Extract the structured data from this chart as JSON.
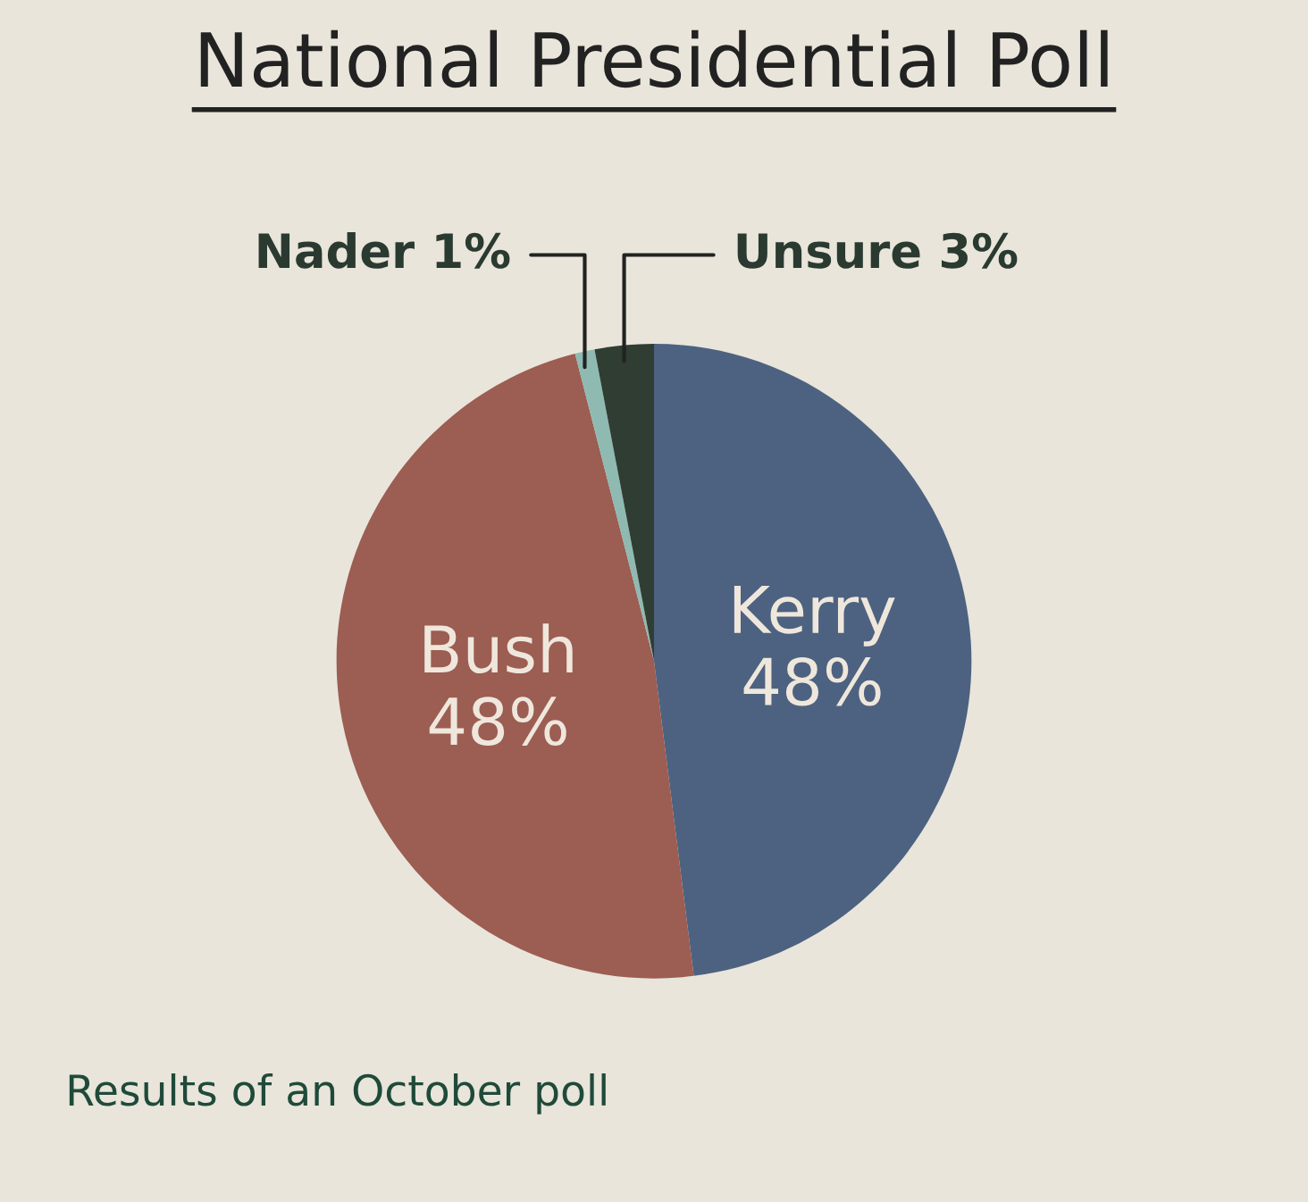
{
  "chart_data": {
    "type": "pie",
    "title": "National Presidential Poll",
    "categories": [
      "Kerry",
      "Bush",
      "Nader",
      "Unsure"
    ],
    "values": [
      48,
      48,
      1,
      3
    ],
    "value_labels": [
      "48%",
      "48%",
      "1%",
      "3%"
    ],
    "colors": [
      "#4d6280",
      "#9c5d52",
      "#8fbab2",
      "#2f3d33"
    ],
    "annotations": [
      "Results of an October poll"
    ]
  }
}
